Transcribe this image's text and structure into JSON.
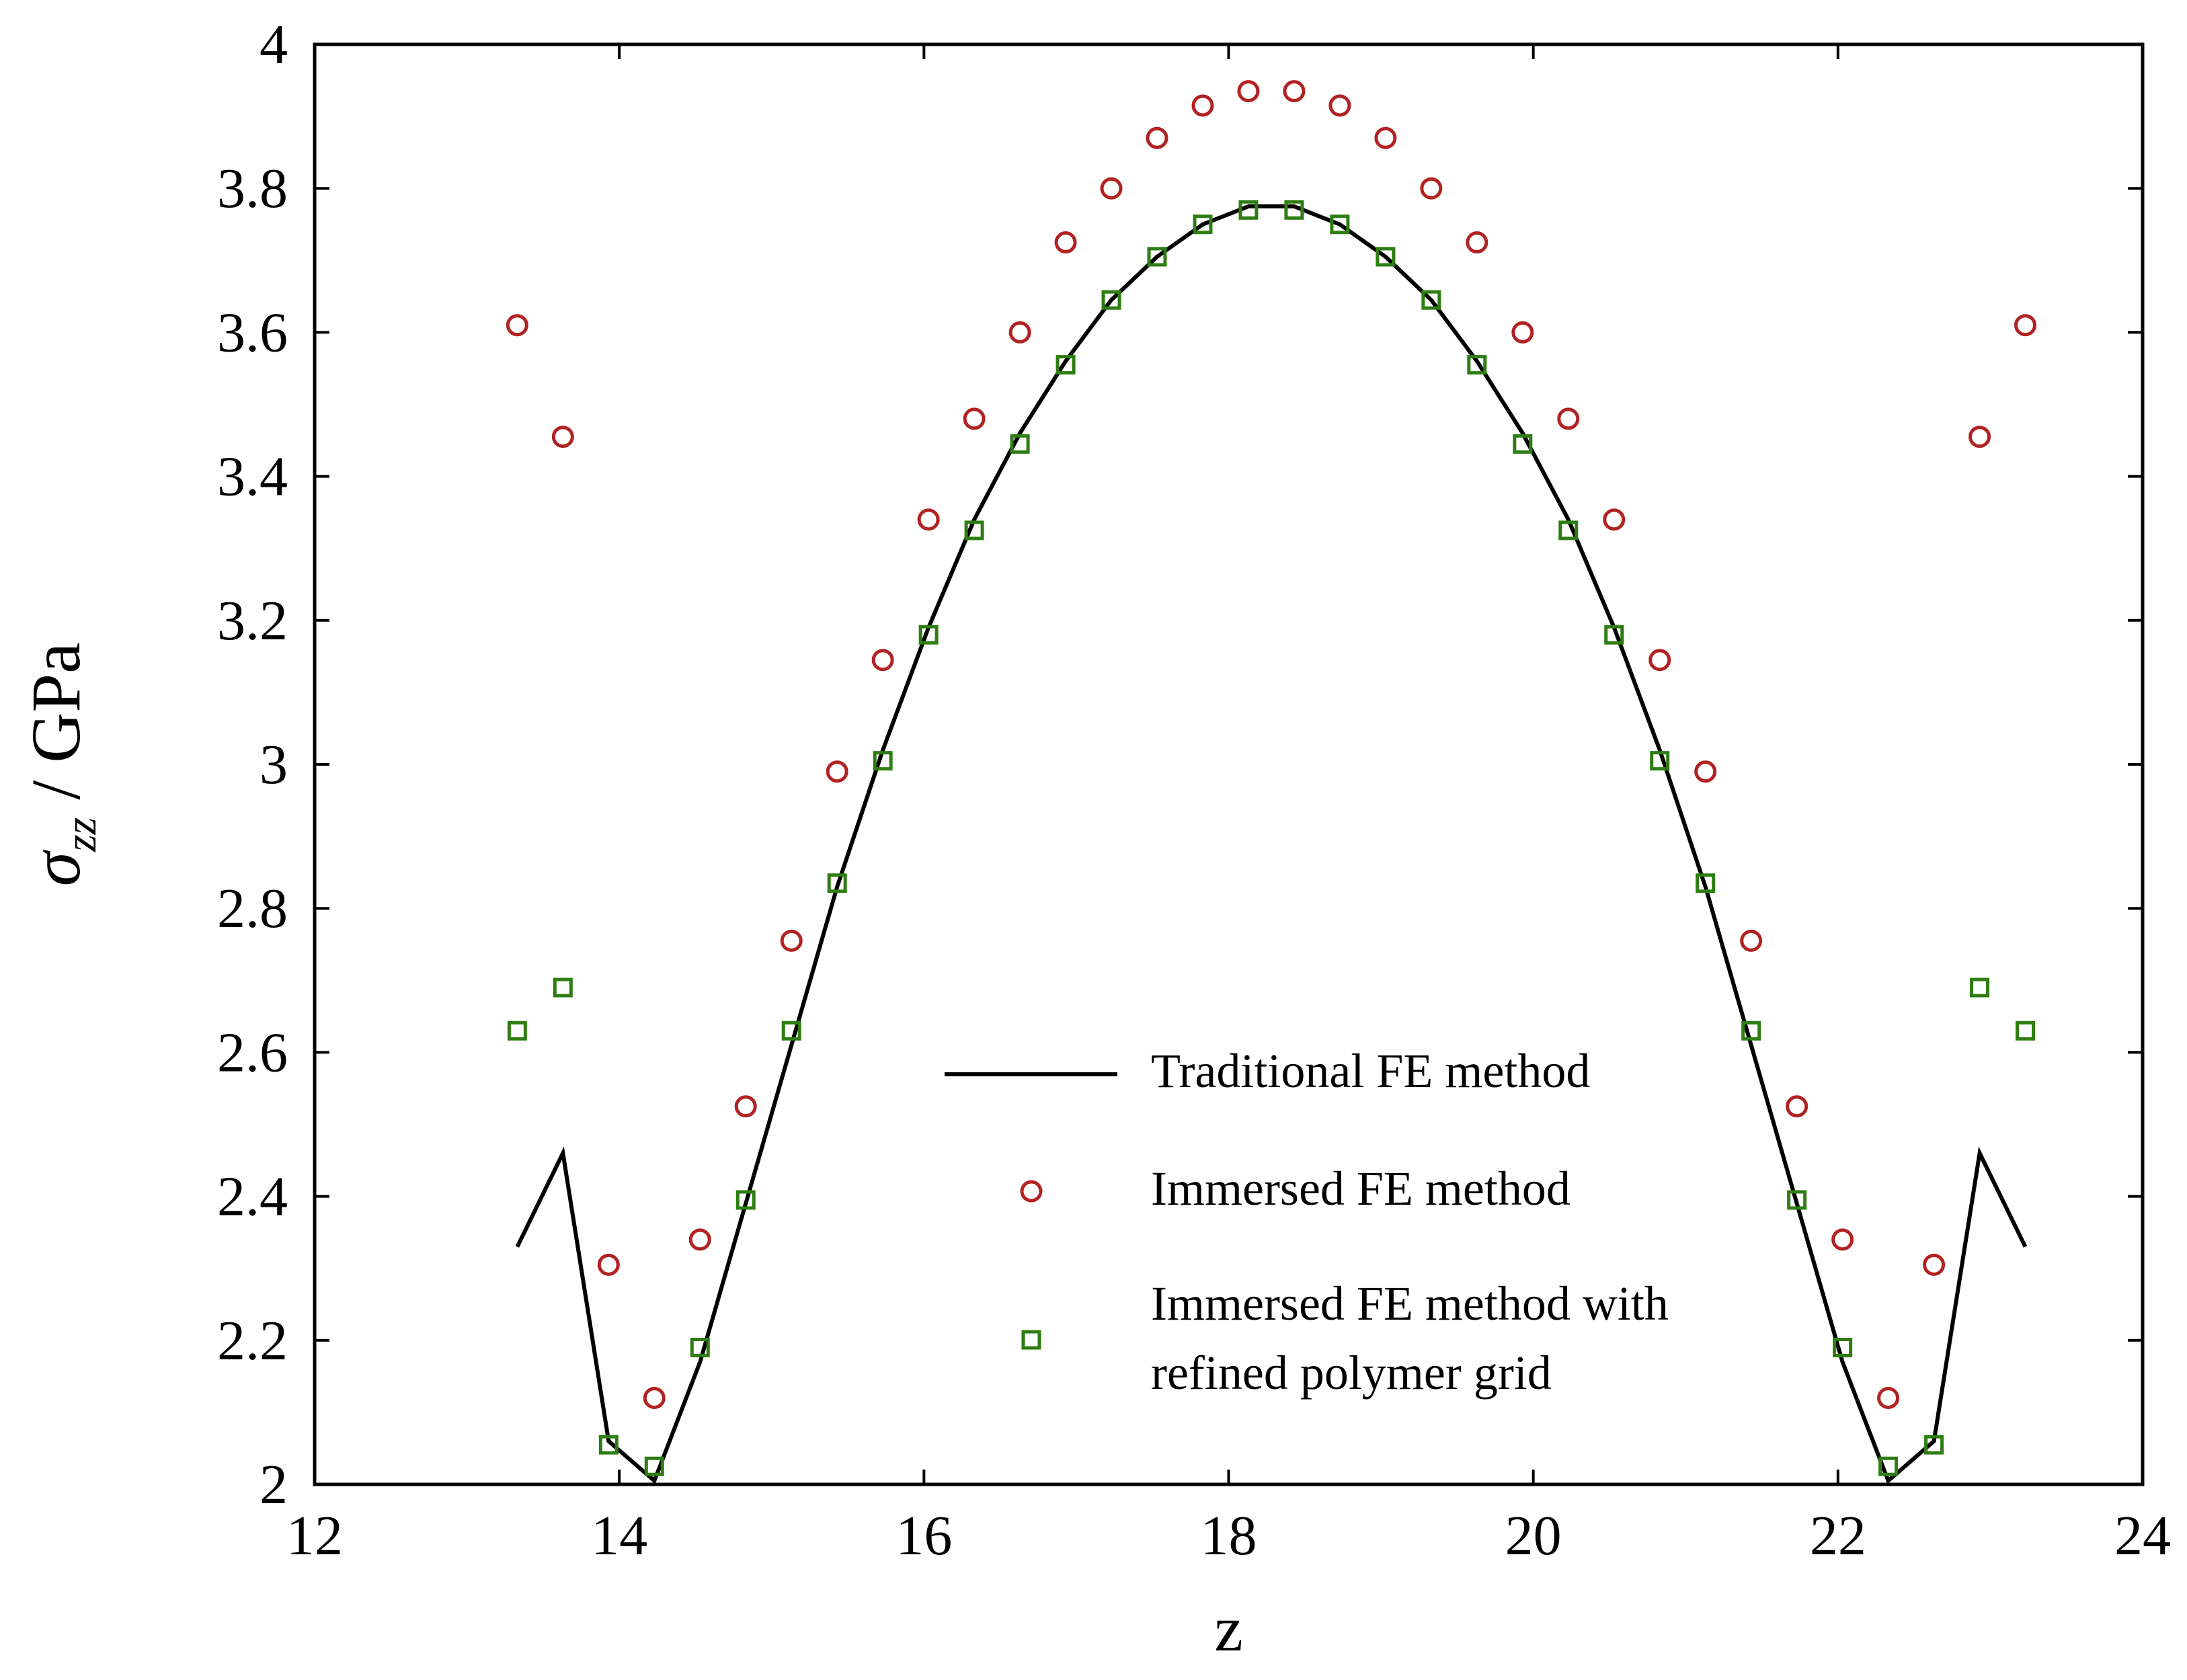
{
  "chart_data": {
    "type": "line",
    "xlabel": "z",
    "ylabel": {
      "symbol": "σ",
      "subscript": "zz",
      "unit": " / GPa"
    },
    "xlim": [
      12,
      24
    ],
    "ylim": [
      2,
      4
    ],
    "xticks": [
      12,
      14,
      16,
      18,
      20,
      22,
      24
    ],
    "xtick_labels": [
      "12",
      "14",
      "16",
      "18",
      "20",
      "22",
      "24"
    ],
    "yticks": [
      2,
      2.2,
      2.4,
      2.6,
      2.8,
      3,
      3.2,
      3.4,
      3.6,
      3.8,
      4
    ],
    "ytick_labels": [
      "2",
      "2.2",
      "2.4",
      "2.6",
      "2.8",
      "3",
      "3.2",
      "3.4",
      "3.6",
      "3.8",
      "4"
    ],
    "grid": false,
    "legend_position": "bottom-center",
    "legend": [
      {
        "label": "Traditional FE method",
        "marker": "line",
        "color": "#000000"
      },
      {
        "label": "Immersed FE method",
        "marker": "circle",
        "color": "#b22222"
      },
      {
        "label": "Immersed FE method with",
        "label2": "refined polymer grid",
        "marker": "square",
        "color": "#2e7d12"
      }
    ],
    "series": [
      {
        "name": "Traditional FE method",
        "style": "line",
        "color": "#000000",
        "x": [
          13.33,
          13.63,
          13.93,
          14.23,
          14.53,
          14.83,
          15.13,
          15.43,
          15.73,
          16.03,
          16.33,
          16.63,
          16.93,
          17.23,
          17.53,
          17.83,
          18.13,
          18.43,
          18.73,
          19.03,
          19.33,
          19.63,
          19.93,
          20.23,
          20.53,
          20.83,
          21.13,
          21.43,
          21.73,
          22.03,
          22.33,
          22.63,
          22.93,
          23.23
        ],
        "y": [
          2.33,
          2.46,
          2.06,
          2.005,
          2.17,
          2.39,
          2.61,
          2.83,
          3.02,
          3.19,
          3.34,
          3.46,
          3.56,
          3.645,
          3.705,
          3.75,
          3.775,
          3.775,
          3.75,
          3.705,
          3.645,
          3.56,
          3.46,
          3.34,
          3.19,
          3.02,
          2.83,
          2.61,
          2.39,
          2.17,
          2.005,
          2.06,
          2.46,
          2.33
        ]
      },
      {
        "name": "Immersed FE method",
        "style": "circle",
        "color": "#b22222",
        "x": [
          13.33,
          13.63,
          13.93,
          14.23,
          14.53,
          14.83,
          15.13,
          15.43,
          15.73,
          16.03,
          16.33,
          16.63,
          16.93,
          17.23,
          17.53,
          17.83,
          18.13,
          18.43,
          18.73,
          19.03,
          19.33,
          19.63,
          19.93,
          20.23,
          20.53,
          20.83,
          21.13,
          21.43,
          21.73,
          22.03,
          22.33,
          22.63,
          22.93,
          23.23
        ],
        "y": [
          3.61,
          3.455,
          2.305,
          2.12,
          2.34,
          2.525,
          2.755,
          2.99,
          3.145,
          3.34,
          3.48,
          3.6,
          3.725,
          3.8,
          3.87,
          3.915,
          3.935,
          3.935,
          3.915,
          3.87,
          3.8,
          3.725,
          3.6,
          3.48,
          3.34,
          3.145,
          2.99,
          2.755,
          2.525,
          2.34,
          2.12,
          2.305,
          3.455,
          3.61
        ]
      },
      {
        "name": "Immersed FE method with refined polymer grid",
        "style": "square",
        "color": "#2e7d12",
        "x": [
          13.33,
          13.63,
          13.93,
          14.23,
          14.53,
          14.83,
          15.13,
          15.43,
          15.73,
          16.03,
          16.33,
          16.63,
          16.93,
          17.23,
          17.53,
          17.83,
          18.13,
          18.43,
          18.73,
          19.03,
          19.33,
          19.63,
          19.93,
          20.23,
          20.53,
          20.83,
          21.13,
          21.43,
          21.73,
          22.03,
          22.33,
          22.63,
          22.93,
          23.23
        ],
        "y": [
          2.63,
          2.69,
          2.055,
          2.025,
          2.19,
          2.395,
          2.63,
          2.835,
          3.005,
          3.18,
          3.325,
          3.445,
          3.555,
          3.645,
          3.705,
          3.75,
          3.77,
          3.77,
          3.75,
          3.705,
          3.645,
          3.555,
          3.445,
          3.325,
          3.18,
          3.005,
          2.835,
          2.63,
          2.395,
          2.19,
          2.025,
          2.055,
          2.69,
          2.63
        ]
      }
    ]
  }
}
